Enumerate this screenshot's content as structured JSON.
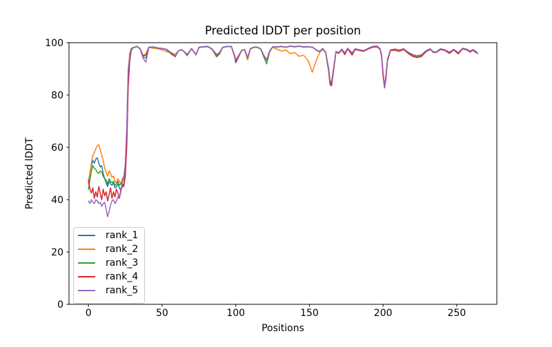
{
  "figure": {
    "background": "#ffffff",
    "text_color": "#000000",
    "spine_color": "#000000"
  },
  "chart_data": {
    "type": "line",
    "title": "Predicted lDDT per position",
    "xlabel": "Positions",
    "ylabel": "Predicted lDDT",
    "xlim": [
      -13.2,
      277.2
    ],
    "ylim": [
      0,
      100
    ],
    "xticks": [
      0,
      50,
      100,
      150,
      200,
      250
    ],
    "yticks": [
      0,
      20,
      40,
      60,
      80,
      100
    ],
    "grid": false,
    "legend_position": "lower-left",
    "x": [
      0,
      1,
      2,
      3,
      4,
      5,
      6,
      7,
      8,
      9,
      10,
      11,
      12,
      13,
      14,
      15,
      16,
      17,
      18,
      19,
      20,
      21,
      22,
      23,
      24,
      25,
      26,
      27,
      28,
      29,
      30,
      33,
      35,
      37,
      39,
      41,
      44,
      47,
      50,
      53,
      57,
      59,
      61,
      63,
      65,
      67,
      70,
      73,
      75,
      78,
      81,
      84,
      87,
      89,
      91,
      94,
      97,
      99,
      100,
      102,
      104,
      106,
      108,
      110,
      113,
      115,
      117,
      119,
      121,
      123,
      125,
      128,
      131,
      134,
      137,
      140,
      143,
      146,
      149,
      152,
      155,
      157,
      159,
      161,
      163,
      164,
      165,
      166,
      168,
      170,
      172,
      174,
      176,
      179,
      181,
      184,
      187,
      190,
      193,
      196,
      198,
      199,
      200,
      201,
      202,
      203,
      205,
      208,
      211,
      214,
      217,
      220,
      223,
      226,
      229,
      232,
      234,
      236,
      239,
      242,
      245,
      248,
      251,
      254,
      257,
      259,
      261,
      263,
      264
    ],
    "series": [
      {
        "name": "rank_1",
        "color": "#1f77b4",
        "values": [
          47,
          50,
          53,
          55,
          54,
          55.5,
          56,
          54,
          52.5,
          53,
          50,
          48,
          46.5,
          45,
          47,
          46,
          45.5,
          46.5,
          44.5,
          45,
          46,
          44.5,
          43.5,
          45,
          46,
          50,
          62,
          85,
          95,
          97.5,
          98,
          98.6,
          97.8,
          94.9,
          95.3,
          98.3,
          98.4,
          98,
          97.8,
          97.5,
          95.9,
          95.4,
          96.8,
          97.4,
          96.6,
          95.5,
          97.8,
          95.5,
          98.2,
          98.5,
          98.6,
          97.6,
          95.5,
          96.2,
          98.2,
          98.6,
          98.6,
          95.3,
          92.3,
          94.8,
          97,
          97.4,
          94.2,
          97.8,
          98.4,
          98.2,
          97.6,
          95.1,
          93.3,
          96.8,
          98.4,
          98.4,
          98.6,
          98.3,
          98.7,
          98.5,
          98.7,
          98.4,
          98.5,
          98.3,
          97.1,
          96.7,
          97.8,
          96.4,
          90,
          84.8,
          84.2,
          88.5,
          96.6,
          96.1,
          97.5,
          96,
          97.8,
          96,
          97.6,
          97.2,
          96.9,
          97.8,
          98.5,
          98.6,
          97.6,
          95.2,
          88.5,
          83.5,
          87.5,
          93.5,
          97.2,
          97.5,
          97.1,
          97.6,
          96.3,
          95.4,
          94.9,
          95.3,
          96.8,
          97.6,
          96.6,
          96.4,
          97.6,
          97.2,
          96.3,
          97.4,
          96.1,
          97.8,
          97.4,
          96.7,
          97.3,
          96.6,
          96.2
        ]
      },
      {
        "name": "rank_2",
        "color": "#ff7f0e",
        "values": [
          46,
          50,
          54,
          57,
          58,
          59.5,
          60.5,
          61,
          59,
          57,
          55,
          52,
          50.5,
          49,
          51,
          50,
          48.5,
          49,
          47,
          46.5,
          48,
          47,
          46,
          48,
          49,
          53,
          65,
          88,
          96,
          97.8,
          98.1,
          98.5,
          97.6,
          95,
          95.5,
          98.2,
          97.9,
          97.7,
          97.2,
          96.6,
          96,
          95.5,
          96.9,
          97.3,
          96.5,
          95.6,
          97.7,
          95.6,
          98.1,
          98.4,
          98.5,
          97.4,
          94.5,
          95.6,
          98.1,
          98.5,
          98.5,
          95,
          93.2,
          95.2,
          97.1,
          97.3,
          93.4,
          97.6,
          98.3,
          98.1,
          97.5,
          95.3,
          93.6,
          96.9,
          98.2,
          97.5,
          96.8,
          97.2,
          95.8,
          96.2,
          94.8,
          95.2,
          93.2,
          88.7,
          93.7,
          96.3,
          97.5,
          96.2,
          90.3,
          85.3,
          84.8,
          88.2,
          96.5,
          96,
          97.4,
          96.1,
          97.7,
          96.1,
          97.5,
          97.1,
          96.8,
          97.7,
          98.4,
          98.5,
          97.5,
          95,
          87.8,
          83.8,
          87,
          93.8,
          97,
          97,
          96.6,
          97.4,
          96,
          95,
          94.5,
          94.9,
          96.7,
          97.5,
          96.5,
          96.3,
          97.5,
          97.1,
          96.2,
          97.3,
          96,
          97.7,
          97.3,
          96.6,
          97.2,
          96.5,
          96.1
        ]
      },
      {
        "name": "rank_3",
        "color": "#2ca02c",
        "values": [
          44,
          47.5,
          51,
          53,
          52,
          51.5,
          50.5,
          50,
          51,
          50.5,
          49,
          48,
          47.5,
          46,
          48,
          47,
          46.5,
          47,
          45.5,
          46,
          47,
          45.5,
          46,
          47.5,
          48,
          52,
          64,
          86,
          95.5,
          97.6,
          97.9,
          98.5,
          97.7,
          94.5,
          94.2,
          98.2,
          98.3,
          97.9,
          97.7,
          97.3,
          95.3,
          95,
          96.7,
          97.3,
          96.5,
          95,
          97.7,
          95.3,
          98.1,
          98.4,
          98.5,
          97.5,
          94.8,
          95.8,
          98.1,
          98.5,
          98.5,
          95.4,
          93,
          94.9,
          96.9,
          97.3,
          94.1,
          97.7,
          98.3,
          98.1,
          97.5,
          94.6,
          91.9,
          96.5,
          98.3,
          98.3,
          98.5,
          98.2,
          98.6,
          98.4,
          98.6,
          98.3,
          98.4,
          98.2,
          97,
          96.5,
          97.7,
          96.3,
          89.8,
          84.3,
          83.8,
          88.3,
          96.5,
          96,
          97.4,
          95.8,
          97.7,
          95.8,
          97.5,
          97.1,
          96.8,
          97.7,
          98.4,
          98.5,
          97.5,
          95.1,
          88.2,
          83,
          87.2,
          93.3,
          97.1,
          97.4,
          97,
          97.5,
          96.2,
          95.3,
          94.8,
          95.2,
          96.7,
          97.5,
          96.5,
          96.3,
          97.5,
          97.1,
          96.2,
          97.3,
          96,
          97.7,
          97.3,
          96.6,
          97.2,
          96.5,
          96.1
        ]
      },
      {
        "name": "rank_4",
        "color": "#d62728",
        "values": [
          47.5,
          44,
          42.5,
          44.5,
          40.5,
          43,
          41,
          45,
          42.5,
          40,
          44,
          41.5,
          43,
          39.5,
          42,
          44.5,
          40.5,
          43,
          41,
          44,
          42.5,
          40.5,
          44,
          46,
          45,
          49,
          60,
          83,
          93,
          96.8,
          98,
          98.6,
          97.8,
          95.1,
          95.4,
          98.3,
          98.4,
          98,
          97.8,
          97.4,
          95.5,
          94.6,
          96.8,
          97.4,
          96.6,
          95.4,
          97.8,
          95.4,
          98.2,
          98.5,
          98.6,
          97.6,
          95,
          96,
          98.2,
          98.6,
          98.6,
          95.2,
          92.8,
          94.7,
          97,
          97.4,
          94.3,
          97.8,
          98.4,
          98.2,
          97.6,
          95.2,
          93.3,
          96.8,
          98.4,
          98.4,
          98.6,
          98.3,
          98.7,
          98.5,
          98.7,
          98.4,
          98.5,
          98.3,
          97.1,
          96.6,
          97.8,
          96.4,
          89.2,
          84,
          83.5,
          87.5,
          96.4,
          95.9,
          97.3,
          95.4,
          97.6,
          95.3,
          97.4,
          97,
          96.7,
          97.6,
          98.3,
          98.4,
          97.4,
          94.6,
          87.2,
          82.7,
          86.3,
          93,
          97,
          97.3,
          96.9,
          97.4,
          95.9,
          94.8,
          94.3,
          94.7,
          96.5,
          97.4,
          96.4,
          96.2,
          97.4,
          97,
          95.9,
          97.2,
          95.7,
          97.6,
          97.2,
          96.4,
          97.1,
          96.3,
          96.1
        ]
      },
      {
        "name": "rank_5",
        "color": "#9467bd",
        "values": [
          39.5,
          38.5,
          40,
          39,
          38.5,
          40,
          39.5,
          38.5,
          39,
          37.5,
          38.5,
          39,
          36.5,
          33.5,
          35.5,
          38,
          39.5,
          40,
          38.5,
          39.5,
          41,
          40.5,
          43,
          47,
          48,
          54,
          68,
          90,
          95,
          97.4,
          98,
          98.6,
          97.7,
          94.2,
          92.5,
          98.2,
          98.4,
          98,
          97.8,
          97.4,
          95.8,
          94.8,
          96.8,
          97.4,
          96.6,
          95.2,
          97.8,
          95.4,
          98.2,
          98.5,
          98.6,
          97.6,
          95.3,
          96.1,
          98.2,
          98.6,
          98.6,
          95.6,
          93.4,
          95.1,
          97,
          97.4,
          94.4,
          97.8,
          98.4,
          98.2,
          97.6,
          95,
          93.2,
          96.7,
          98.4,
          98.4,
          98.6,
          98.3,
          98.7,
          98.5,
          98.7,
          98.4,
          98.5,
          98.3,
          97.1,
          96.6,
          97.8,
          96.4,
          90.5,
          85.6,
          85,
          88.8,
          96.7,
          96.2,
          97.6,
          96.1,
          97.9,
          96.1,
          97.7,
          97.3,
          97,
          97.9,
          98.6,
          98.7,
          97.7,
          95.4,
          88.8,
          83.2,
          87.8,
          93.7,
          97.3,
          97.6,
          97.2,
          97.7,
          96.4,
          95.5,
          95,
          95.4,
          96.9,
          97.7,
          96.2,
          96.5,
          97.7,
          97.3,
          96.4,
          97.5,
          96.2,
          97.9,
          97.5,
          96.8,
          97.4,
          96.7,
          95.7
        ]
      }
    ]
  },
  "legend": {
    "items": [
      {
        "label": "rank_1",
        "color": "#1f77b4"
      },
      {
        "label": "rank_2",
        "color": "#ff7f0e"
      },
      {
        "label": "rank_3",
        "color": "#2ca02c"
      },
      {
        "label": "rank_4",
        "color": "#d62728"
      },
      {
        "label": "rank_5",
        "color": "#9467bd"
      }
    ]
  }
}
